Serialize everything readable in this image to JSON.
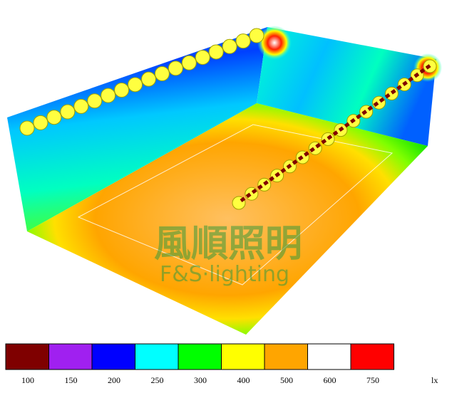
{
  "watermark": {
    "title": "風順照明",
    "subtitle": "F&S·lighting"
  },
  "legend": {
    "items": [
      {
        "label": "100",
        "color": "#7f0000"
      },
      {
        "label": "150",
        "color": "#a020f0"
      },
      {
        "label": "200",
        "color": "#0000ff"
      },
      {
        "label": "250",
        "color": "#00ffff"
      },
      {
        "label": "300",
        "color": "#00ff00"
      },
      {
        "label": "400",
        "color": "#ffff00"
      },
      {
        "label": "500",
        "color": "#ffa500"
      },
      {
        "label": "600",
        "color": "#ffffff"
      },
      {
        "label": "750",
        "color": "#ff0000"
      }
    ],
    "unit": "lx"
  }
}
